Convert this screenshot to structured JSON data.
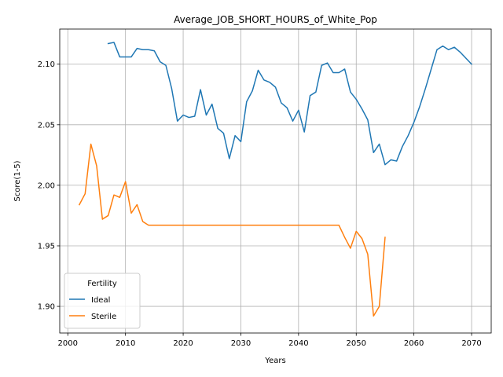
{
  "chart_data": {
    "type": "line",
    "title": "Average_JOB_SHORT_HOURS_of_White_Pop",
    "xlabel": "Years",
    "ylabel": "Score(1-5)",
    "xlim": [
      1998.6,
      2073.4
    ],
    "ylim": [
      1.878,
      2.129
    ],
    "xticks": [
      2000,
      2010,
      2020,
      2030,
      2040,
      2050,
      2060,
      2070
    ],
    "yticks": [
      1.9,
      1.95,
      2.0,
      2.05,
      2.1
    ],
    "ytick_labels": [
      "1.90",
      "1.95",
      "2.00",
      "2.05",
      "2.10"
    ],
    "grid": true,
    "legend": {
      "title": "Fertility",
      "placement": "lower-left"
    },
    "series": [
      {
        "name": "Ideal",
        "color": "#1f77b4",
        "x": [
          2007,
          2008,
          2009,
          2010,
          2011,
          2012,
          2013,
          2014,
          2015,
          2016,
          2017,
          2018,
          2019,
          2020,
          2021,
          2022,
          2023,
          2024,
          2025,
          2026,
          2027,
          2028,
          2029,
          2030,
          2031,
          2032,
          2033,
          2034,
          2035,
          2036,
          2037,
          2038,
          2039,
          2040,
          2041,
          2042,
          2043,
          2044,
          2045,
          2046,
          2047,
          2048,
          2049,
          2050,
          2051,
          2052,
          2053,
          2054,
          2055,
          2056,
          2057,
          2058,
          2059,
          2060,
          2061,
          2062,
          2063,
          2064,
          2065,
          2066,
          2067,
          2068,
          2069,
          2070
        ],
        "y": [
          2.117,
          2.118,
          2.106,
          2.106,
          2.106,
          2.113,
          2.112,
          2.112,
          2.111,
          2.102,
          2.099,
          2.08,
          2.053,
          2.058,
          2.056,
          2.057,
          2.079,
          2.058,
          2.067,
          2.047,
          2.043,
          2.022,
          2.041,
          2.036,
          2.069,
          2.078,
          2.095,
          2.087,
          2.085,
          2.081,
          2.068,
          2.064,
          2.053,
          2.062,
          2.044,
          2.074,
          2.077,
          2.099,
          2.101,
          2.093,
          2.093,
          2.096,
          2.077,
          2.071,
          2.063,
          2.054,
          2.027,
          2.034,
          2.017,
          2.021,
          2.02,
          2.032,
          2.041,
          2.052,
          2.065,
          2.08,
          2.096,
          2.112,
          2.115,
          2.112,
          2.114,
          2.11,
          2.105,
          2.1
        ]
      },
      {
        "name": "Sterile",
        "color": "#ff7f0e",
        "x": [
          2002,
          2003,
          2004,
          2005,
          2006,
          2007,
          2008,
          2009,
          2010,
          2011,
          2012,
          2013,
          2014,
          2015,
          2016,
          2017,
          2018,
          2019,
          2020,
          2021,
          2022,
          2023,
          2024,
          2025,
          2026,
          2027,
          2028,
          2029,
          2030,
          2031,
          2032,
          2033,
          2034,
          2035,
          2036,
          2037,
          2038,
          2039,
          2040,
          2041,
          2042,
          2043,
          2044,
          2045,
          2046,
          2047,
          2048,
          2049,
          2050,
          2051,
          2052,
          2053,
          2054,
          2055
        ],
        "y": [
          1.984,
          1.993,
          2.034,
          2.016,
          1.972,
          1.975,
          1.992,
          1.99,
          2.003,
          1.977,
          1.984,
          1.97,
          1.967,
          1.967,
          1.967,
          1.967,
          1.967,
          1.967,
          1.967,
          1.967,
          1.967,
          1.967,
          1.967,
          1.967,
          1.967,
          1.967,
          1.967,
          1.967,
          1.967,
          1.967,
          1.967,
          1.967,
          1.967,
          1.967,
          1.967,
          1.967,
          1.967,
          1.967,
          1.967,
          1.967,
          1.967,
          1.967,
          1.967,
          1.967,
          1.967,
          1.967,
          1.957,
          1.948,
          1.962,
          1.956,
          1.943,
          1.892,
          1.9,
          1.957
        ]
      }
    ]
  }
}
